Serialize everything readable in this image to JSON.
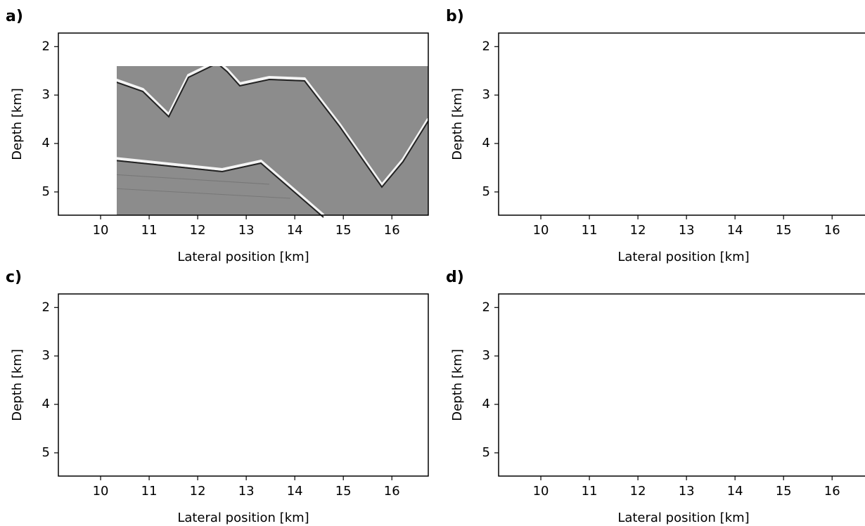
{
  "chart_data": [
    {
      "type": "image",
      "label": "a)",
      "xlabel": "Lateral position [km]",
      "ylabel": "Depth [km]",
      "xlim": [
        9.13,
        16.75
      ],
      "ylim": [
        5.48,
        1.72
      ],
      "xticks": [
        10,
        11,
        12,
        13,
        14,
        15,
        16
      ],
      "yticks": [
        2,
        3,
        4,
        5
      ]
    },
    {
      "type": "image",
      "label": "b)",
      "xlabel": "Lateral position [km]",
      "ylabel": "Depth [km]",
      "xlim": [
        9.13,
        16.75
      ],
      "ylim": [
        5.48,
        1.72
      ],
      "xticks": [
        10,
        11,
        12,
        13,
        14,
        15,
        16
      ],
      "yticks": [
        2,
        3,
        4,
        5
      ]
    },
    {
      "type": "image",
      "label": "c)",
      "xlabel": "Lateral position [km]",
      "ylabel": "Depth [km]",
      "xlim": [
        9.13,
        16.75
      ],
      "ylim": [
        5.48,
        1.72
      ],
      "xticks": [
        10,
        11,
        12,
        13,
        14,
        15,
        16
      ],
      "yticks": [
        2,
        3,
        4,
        5
      ]
    },
    {
      "type": "image",
      "label": "d)",
      "xlabel": "Lateral position [km]",
      "ylabel": "Depth [km]",
      "xlim": [
        9.13,
        16.75
      ],
      "ylim": [
        5.48,
        1.72
      ],
      "xticks": [
        10,
        11,
        12,
        13,
        14,
        15,
        16
      ],
      "yticks": [
        2,
        3,
        4,
        5
      ]
    }
  ]
}
